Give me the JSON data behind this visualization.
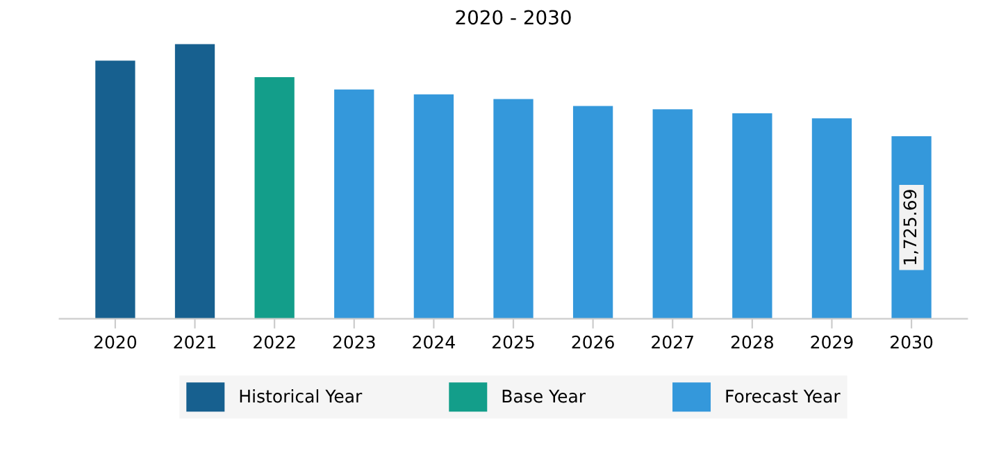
{
  "chart_data": {
    "type": "bar",
    "title": "2020 - 2030",
    "legend_title": null,
    "categories": [
      "2020",
      "2021",
      "2022",
      "2023",
      "2024",
      "2025",
      "2026",
      "2027",
      "2028",
      "2029",
      "2030"
    ],
    "series": [
      {
        "name": "Historical Year",
        "color": "#17608f",
        "values": [
          2439,
          2595,
          null,
          null,
          null,
          null,
          null,
          null,
          null,
          null,
          null
        ]
      },
      {
        "name": "Base Year",
        "color": "#139e8a",
        "values": [
          null,
          null,
          2284,
          null,
          null,
          null,
          null,
          null,
          null,
          null,
          null
        ]
      },
      {
        "name": "Forecast Year",
        "color": "#3498db",
        "values": [
          null,
          null,
          null,
          2167,
          2120,
          2076,
          2011,
          1980,
          1941,
          1894,
          1725.69
        ],
        "value_labels": [
          null,
          null,
          null,
          null,
          null,
          null,
          null,
          null,
          null,
          null,
          "1,725.69"
        ]
      }
    ],
    "legend": "bottom",
    "grid": false
  }
}
